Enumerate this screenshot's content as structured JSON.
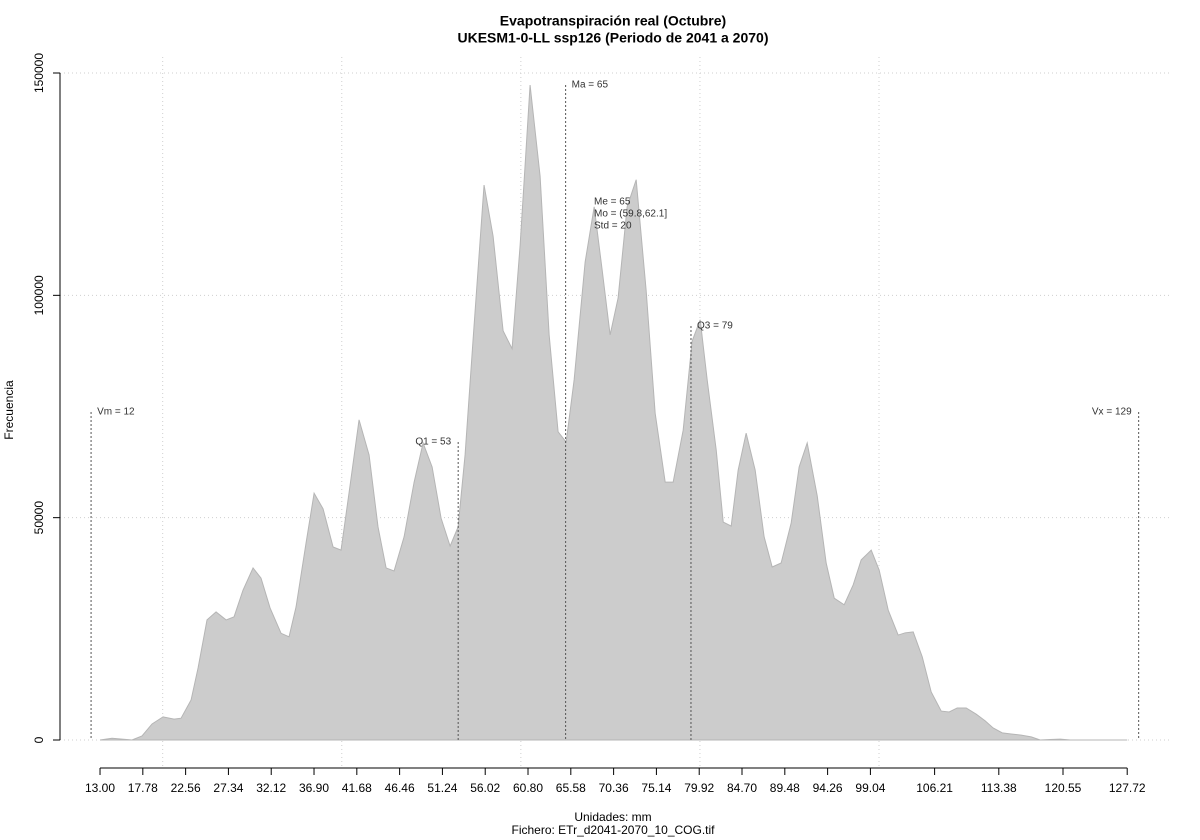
{
  "chart_data": {
    "type": "area",
    "title": "Evapotranspiración real (Octubre)",
    "subtitle": "UKESM1-0-LL ssp126 (Periodo de 2041 a 2070)",
    "x_label": "Unidades: mm",
    "caption": "Fichero: ETr_d2041-2070_10_COG.tif",
    "y_label": "Frecuencia",
    "color": "#cccccc",
    "grid": true,
    "xlim": [
      8.53,
      132.5
    ],
    "ylim": [
      -6300,
      153600
    ],
    "xticks": [
      {
        "value": 13.0,
        "label": "13.00"
      },
      {
        "value": 17.78,
        "label": "17.78"
      },
      {
        "value": 22.56,
        "label": "22.56"
      },
      {
        "value": 27.34,
        "label": "27.34"
      },
      {
        "value": 32.12,
        "label": "32.12"
      },
      {
        "value": 36.9,
        "label": "36.90"
      },
      {
        "value": 41.68,
        "label": "41.68"
      },
      {
        "value": 46.46,
        "label": "46.46"
      },
      {
        "value": 51.24,
        "label": "51.24"
      },
      {
        "value": 56.02,
        "label": "56.02"
      },
      {
        "value": 60.8,
        "label": "60.80"
      },
      {
        "value": 65.58,
        "label": "65.58"
      },
      {
        "value": 70.36,
        "label": "70.36"
      },
      {
        "value": 75.14,
        "label": "75.14"
      },
      {
        "value": 79.92,
        "label": "79.92"
      },
      {
        "value": 84.7,
        "label": "84.70"
      },
      {
        "value": 89.48,
        "label": "89.48"
      },
      {
        "value": 94.26,
        "label": "94.26"
      },
      {
        "value": 99.04,
        "label": "99.04"
      },
      {
        "value": 106.21,
        "label": "106.21"
      },
      {
        "value": 113.38,
        "label": "113.38"
      },
      {
        "value": 120.55,
        "label": "120.55"
      },
      {
        "value": 127.72,
        "label": "127.72"
      }
    ],
    "xgrid": [
      20,
      40,
      60,
      80,
      100
    ],
    "yticks": [
      0,
      50000,
      100000,
      150000
    ],
    "x": [
      13.0,
      14.34,
      15.46,
      16.57,
      17.69,
      18.81,
      20.04,
      21.27,
      22.05,
      23.17,
      23.95,
      24.95,
      25.96,
      27.08,
      27.97,
      28.97,
      30.09,
      30.98,
      31.99,
      33.22,
      34.11,
      34.89,
      36.01,
      36.91,
      37.91,
      39.03,
      39.92,
      40.93,
      41.93,
      43.05,
      44.05,
      44.95,
      45.84,
      46.96,
      48.08,
      49.08,
      50.09,
      51.09,
      52.1,
      52.99,
      53.77,
      54.67,
      55.89,
      56.9,
      58.02,
      59.02,
      59.92,
      61.03,
      62.15,
      63.16,
      64.16,
      65.06,
      65.95,
      67.18,
      68.19,
      69.08,
      69.97,
      70.86,
      71.87,
      72.88,
      73.99,
      75.0,
      76.12,
      77.01,
      78.13,
      79.13,
      80.03,
      80.81,
      81.82,
      82.6,
      83.49,
      84.27,
      85.16,
      86.17,
      87.17,
      88.07,
      89.07,
      90.19,
      91.08,
      91.98,
      93.1,
      94.1,
      95.0,
      96.11,
      97.12,
      98.01,
      99.13,
      100.02,
      101.03,
      102.14,
      102.93,
      103.82,
      104.83,
      105.83,
      106.95,
      107.84,
      108.73,
      109.74,
      110.86,
      111.86,
      112.75,
      113.76,
      114.77,
      115.88,
      117.0,
      118.0,
      119.12,
      120.24,
      121.36,
      127.72
    ],
    "y": [
      0,
      400,
      200,
      0,
      900,
      3600,
      5200,
      4700,
      4900,
      9000,
      16200,
      27000,
      28800,
      27000,
      27700,
      33700,
      38700,
      36400,
      29700,
      24000,
      23200,
      29900,
      44300,
      55500,
      52000,
      43400,
      42700,
      57300,
      72000,
      64100,
      47900,
      38700,
      38000,
      45700,
      58000,
      66800,
      61400,
      49900,
      43600,
      47900,
      64100,
      90200,
      124800,
      113300,
      92000,
      88000,
      111300,
      147300,
      126800,
      91100,
      69300,
      67000,
      81000,
      107500,
      119900,
      105700,
      91100,
      99400,
      119900,
      126000,
      101200,
      73500,
      58000,
      58000,
      69700,
      89700,
      94500,
      81000,
      65200,
      49000,
      48100,
      60700,
      69000,
      60700,
      45700,
      38900,
      39800,
      48800,
      61400,
      66800,
      54900,
      39800,
      31900,
      30400,
      34900,
      40500,
      42700,
      38200,
      29200,
      23600,
      24100,
      24300,
      18700,
      10800,
      6500,
      6300,
      7200,
      7200,
      5800,
      4300,
      2700,
      1600,
      1350,
      1100,
      700,
      0,
      100,
      200,
      0,
      0
    ],
    "annotations": [
      {
        "label": "Vm = 12",
        "x": 12
      },
      {
        "label": "Q1 = 53",
        "x": 53
      },
      {
        "label": "Ma = 65",
        "x": 65
      },
      {
        "label": "Q3 = 79",
        "x": 79
      },
      {
        "label": "Vx = 129",
        "x": 129
      }
    ],
    "stats_text": [
      "Me = 65",
      "Mo = (59.8,62.1]",
      "Std = 20"
    ]
  }
}
